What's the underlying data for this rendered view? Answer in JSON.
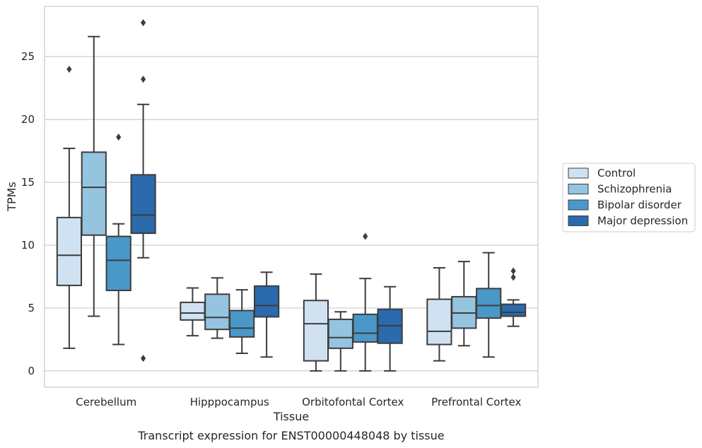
{
  "chart_data": {
    "type": "box",
    "xlabel": "Tissue",
    "ylabel": "TPMs",
    "caption": "Transcript expression for ENST00000448048 by tissue",
    "ylim": [
      -1.3,
      29.0
    ],
    "yticks": [
      0,
      5,
      10,
      15,
      20,
      25
    ],
    "grid": "horizontal",
    "legend_position": "right",
    "categories": [
      "Cerebellum",
      "Hipppocampus",
      "Orbitofontal Cortex",
      "Prefrontal Cortex"
    ],
    "series": [
      {
        "name": "Control",
        "color": "#d0e1f2",
        "boxes": [
          {
            "whisker_low": 1.8,
            "q1": 6.8,
            "median": 9.2,
            "q3": 12.2,
            "whisker_high": 17.7,
            "outliers": [
              24.0
            ]
          },
          {
            "whisker_low": 2.8,
            "q1": 4.05,
            "median": 4.6,
            "q3": 5.45,
            "whisker_high": 6.6,
            "outliers": []
          },
          {
            "whisker_low": 0.0,
            "q1": 0.8,
            "median": 3.75,
            "q3": 5.6,
            "whisker_high": 7.7,
            "outliers": []
          },
          {
            "whisker_low": 0.8,
            "q1": 2.1,
            "median": 3.15,
            "q3": 5.7,
            "whisker_high": 8.2,
            "outliers": []
          }
        ]
      },
      {
        "name": "Schizophrenia",
        "color": "#94c4df",
        "boxes": [
          {
            "whisker_low": 4.35,
            "q1": 10.8,
            "median": 14.6,
            "q3": 17.4,
            "whisker_high": 26.6,
            "outliers": []
          },
          {
            "whisker_low": 2.6,
            "q1": 3.3,
            "median": 4.25,
            "q3": 6.1,
            "whisker_high": 7.4,
            "outliers": []
          },
          {
            "whisker_low": 0.0,
            "q1": 1.8,
            "median": 2.65,
            "q3": 4.1,
            "whisker_high": 4.7,
            "outliers": []
          },
          {
            "whisker_low": 2.0,
            "q1": 3.4,
            "median": 4.6,
            "q3": 5.9,
            "whisker_high": 8.7,
            "outliers": []
          }
        ]
      },
      {
        "name": "Bipolar disorder",
        "color": "#4a98c9",
        "boxes": [
          {
            "whisker_low": 2.1,
            "q1": 6.4,
            "median": 8.8,
            "q3": 10.7,
            "whisker_high": 11.7,
            "outliers": [
              18.6
            ]
          },
          {
            "whisker_low": 1.4,
            "q1": 2.7,
            "median": 3.4,
            "q3": 4.8,
            "whisker_high": 6.45,
            "outliers": []
          },
          {
            "whisker_low": 0.0,
            "q1": 2.3,
            "median": 3.0,
            "q3": 4.5,
            "whisker_high": 7.35,
            "outliers": [
              10.7
            ]
          },
          {
            "whisker_low": 1.1,
            "q1": 4.2,
            "median": 5.2,
            "q3": 6.55,
            "whisker_high": 9.4,
            "outliers": []
          }
        ]
      },
      {
        "name": "Major depression",
        "color": "#2a6aad",
        "boxes": [
          {
            "whisker_low": 9.0,
            "q1": 10.95,
            "median": 12.4,
            "q3": 15.6,
            "whisker_high": 21.2,
            "outliers": [
              1.0,
              23.2,
              27.7
            ]
          },
          {
            "whisker_low": 1.1,
            "q1": 4.3,
            "median": 5.2,
            "q3": 6.75,
            "whisker_high": 7.85,
            "outliers": []
          },
          {
            "whisker_low": 0.0,
            "q1": 2.2,
            "median": 3.6,
            "q3": 4.9,
            "whisker_high": 6.7,
            "outliers": []
          },
          {
            "whisker_low": 3.55,
            "q1": 4.35,
            "median": 4.65,
            "q3": 5.3,
            "whisker_high": 5.65,
            "outliers": [
              7.45,
              7.95
            ]
          }
        ]
      }
    ]
  }
}
